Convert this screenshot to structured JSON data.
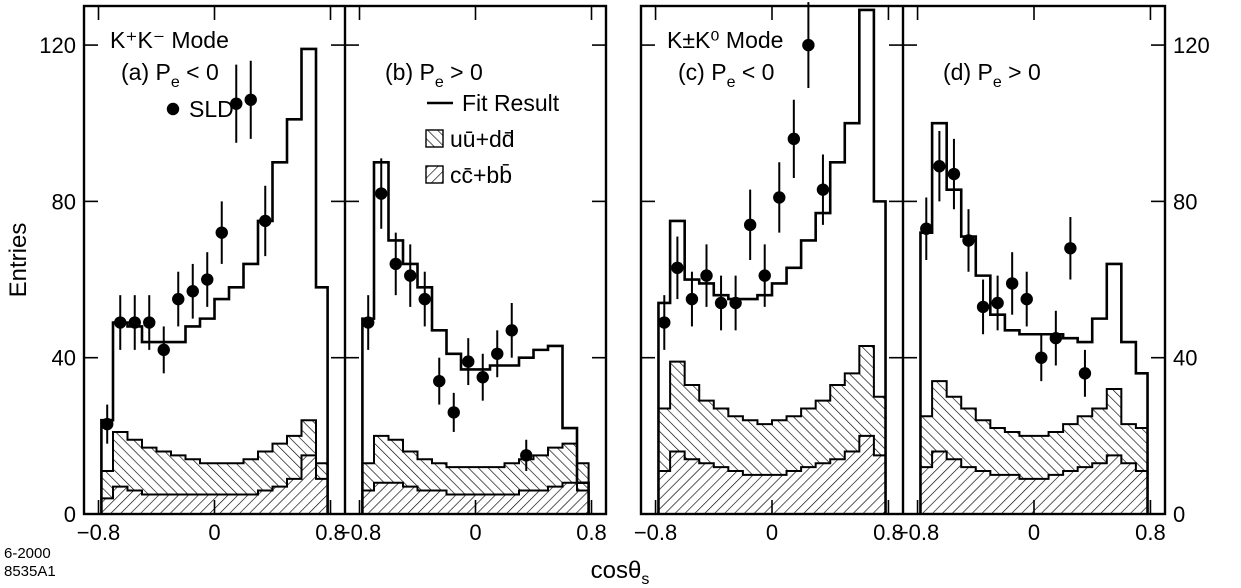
{
  "chart_data": {
    "type": "histogram",
    "x_label": "cosθ",
    "x_label_sub": "s",
    "y_label": "Entries",
    "x_range": [
      -0.9,
      0.9
    ],
    "y_range": [
      0,
      130
    ],
    "x_ticks": [
      {
        "value": -0.8,
        "label": "−0.8"
      },
      {
        "value": 0,
        "label": "0"
      },
      {
        "value": 0.8,
        "label": "0.8"
      }
    ],
    "y_ticks": [
      {
        "value": 0,
        "label": "0"
      },
      {
        "value": 40,
        "label": "40"
      },
      {
        "value": 80,
        "label": "80"
      },
      {
        "value": 120,
        "label": "120"
      }
    ],
    "bin_edges": [
      -0.78,
      -0.7,
      -0.6,
      -0.5,
      -0.4,
      -0.3,
      -0.2,
      -0.1,
      0,
      0.1,
      0.2,
      0.3,
      0.4,
      0.5,
      0.6,
      0.7,
      0.78
    ],
    "point_x": [
      -0.74,
      -0.65,
      -0.55,
      -0.45,
      -0.35,
      -0.25,
      -0.15,
      -0.05,
      0.05,
      0.15,
      0.25,
      0.35,
      0.45,
      0.55,
      0.65,
      0.74
    ],
    "legend": {
      "fit_label": "Fit Result",
      "uds_label": "uū+dd̄",
      "cb_label": "cc̄+bb̄",
      "data_label": "SLD"
    },
    "corner_label": [
      "6-2000",
      "8535A1"
    ],
    "panels": [
      {
        "mode_label": "K⁺K⁻ Mode",
        "label": "(a) P",
        "label_sub": "e",
        "label_tail": " < 0",
        "data": [
          23,
          49,
          49,
          49,
          42,
          55,
          57,
          60,
          72,
          105,
          106,
          75
        ],
        "data_x": [
          -0.74,
          -0.65,
          -0.55,
          -0.45,
          -0.35,
          -0.25,
          -0.15,
          -0.05,
          0.05,
          0.15,
          0.25,
          0.35
        ],
        "data_err": [
          5,
          7,
          7,
          7,
          6,
          7,
          7,
          7,
          8,
          10,
          10,
          9
        ],
        "fit": [
          24,
          49,
          48,
          44,
          44,
          44,
          48,
          50,
          55,
          58,
          64,
          75,
          90,
          101,
          119,
          58
        ],
        "total_bg": [
          11,
          21,
          19,
          17,
          16,
          15,
          14,
          13,
          13,
          13,
          14,
          16,
          18,
          20,
          24,
          13
        ],
        "cb": [
          4,
          7,
          6,
          5,
          5,
          5,
          5,
          5,
          5,
          5,
          5,
          6,
          7,
          9,
          15,
          9
        ]
      },
      {
        "label": "(b) P",
        "label_sub": "e",
        "label_tail": " > 0",
        "data": [
          49,
          82,
          64,
          61,
          55,
          34,
          26,
          39,
          35,
          41,
          47,
          15
        ],
        "data_x": [
          -0.74,
          -0.65,
          -0.55,
          -0.45,
          -0.35,
          -0.25,
          -0.15,
          -0.05,
          0.05,
          0.15,
          0.25,
          0.35
        ],
        "data_err": [
          7,
          9,
          8,
          8,
          7,
          6,
          5,
          6,
          6,
          6,
          7,
          4
        ],
        "fit": [
          50,
          90,
          70,
          64,
          58,
          47,
          41,
          37,
          37,
          38,
          38,
          40,
          42,
          43,
          22,
          8
        ],
        "total_bg": [
          13,
          20,
          19,
          16,
          14,
          13,
          12,
          12,
          12,
          12,
          13,
          14,
          15,
          17,
          18,
          13
        ],
        "cb": [
          6,
          8,
          8,
          7,
          6,
          6,
          5,
          5,
          5,
          5,
          5,
          6,
          6,
          7,
          8,
          6
        ]
      },
      {
        "mode_label": "K±K⁰ Mode",
        "label": "(c) P",
        "label_sub": "e",
        "label_tail": " < 0",
        "data": [
          49,
          63,
          55,
          61,
          54,
          54,
          74,
          61,
          81,
          96,
          120,
          83
        ],
        "data_x": [
          -0.74,
          -0.65,
          -0.55,
          -0.45,
          -0.35,
          -0.25,
          -0.15,
          -0.05,
          0.05,
          0.15,
          0.25,
          0.35
        ],
        "data_err": [
          7,
          8,
          7,
          8,
          7,
          7,
          9,
          8,
          9,
          10,
          11,
          9
        ],
        "fit": [
          54,
          75,
          60,
          59,
          56,
          55,
          55,
          56,
          59,
          63,
          70,
          77,
          90,
          100,
          129,
          80
        ],
        "total_bg": [
          27,
          39,
          33,
          29,
          27,
          25,
          24,
          23,
          24,
          25,
          27,
          29,
          33,
          36,
          43,
          30
        ],
        "cb": [
          11,
          16,
          14,
          13,
          12,
          11,
          10,
          10,
          10,
          11,
          12,
          13,
          14,
          16,
          20,
          15
        ]
      },
      {
        "label": "(d) P",
        "label_sub": "e",
        "label_tail": " > 0",
        "data": [
          73,
          89,
          87,
          70,
          53,
          54,
          59,
          55,
          40,
          45,
          68,
          36
        ],
        "data_x": [
          -0.74,
          -0.65,
          -0.55,
          -0.45,
          -0.35,
          -0.25,
          -0.15,
          -0.05,
          0.05,
          0.15,
          0.25,
          0.35
        ],
        "data_err": [
          8,
          9,
          9,
          8,
          7,
          7,
          8,
          7,
          6,
          7,
          8,
          6
        ],
        "fit": [
          72,
          100,
          83,
          71,
          61,
          51,
          47,
          46,
          46,
          46,
          45,
          44,
          50,
          64,
          44,
          36
        ],
        "total_bg": [
          25,
          34,
          30,
          27,
          24,
          22,
          21,
          20,
          20,
          21,
          23,
          25,
          27,
          32,
          23,
          22
        ],
        "cb": [
          12,
          16,
          14,
          12,
          11,
          10,
          10,
          9,
          9,
          10,
          11,
          12,
          13,
          15,
          13,
          11
        ]
      }
    ]
  }
}
